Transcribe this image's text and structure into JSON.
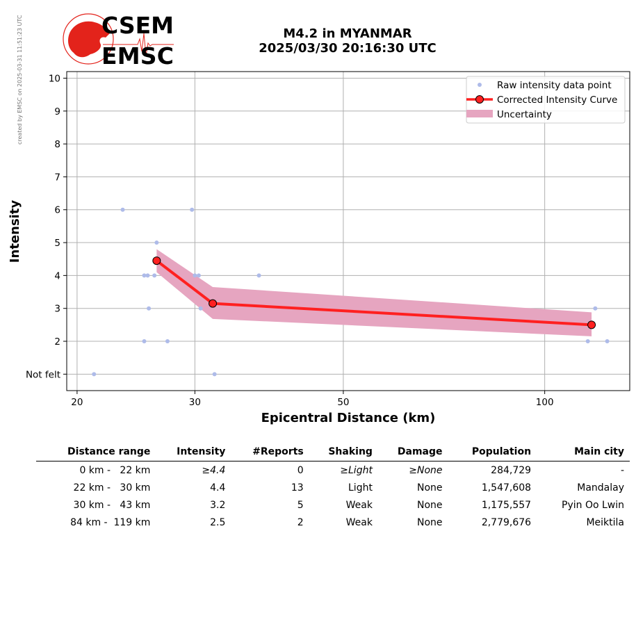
{
  "side_note": "created by EMSC on 2025-03-31 11:51:23 UTC",
  "logo": {
    "line1": "CSEM",
    "line2": "EMSC",
    "brand_color": "#e3231b"
  },
  "title": {
    "line1": "M4.2 in MYANMAR",
    "line2": "2025/03/30 20:16:30 UTC"
  },
  "chart_data": {
    "type": "scatter",
    "xlabel": "Epicentral Distance (km)",
    "ylabel": "Intensity",
    "xscale": "log",
    "xlim": [
      19.3,
      134
    ],
    "ylim": [
      0.5,
      10.2
    ],
    "xticks": [
      {
        "value": 20,
        "label": "20"
      },
      {
        "value": 30,
        "label": "30"
      },
      {
        "value": 50,
        "label": "50"
      },
      {
        "value": 100,
        "label": "100"
      }
    ],
    "yticks": [
      {
        "value": 1,
        "label": "Not felt"
      },
      {
        "value": 2,
        "label": "2"
      },
      {
        "value": 3,
        "label": "3"
      },
      {
        "value": 4,
        "label": "4"
      },
      {
        "value": 5,
        "label": "5"
      },
      {
        "value": 6,
        "label": "6"
      },
      {
        "value": 7,
        "label": "7"
      },
      {
        "value": 8,
        "label": "8"
      },
      {
        "value": 9,
        "label": "9"
      },
      {
        "value": 10,
        "label": "10"
      }
    ],
    "grid": true,
    "legend_position": "top-right",
    "legend": [
      {
        "key": "raw",
        "label": "Raw intensity data point"
      },
      {
        "key": "curve",
        "label": "Corrected Intensity Curve"
      },
      {
        "key": "band",
        "label": "Uncertainty"
      }
    ],
    "colors": {
      "raw": "#aebbe9",
      "curve": "#ff2020",
      "band": "#e6a5c0",
      "marker_edge": "#000000",
      "grid": "#b0b0b0"
    },
    "raw_points": [
      [
        21.2,
        1
      ],
      [
        23.4,
        6
      ],
      [
        25.2,
        4
      ],
      [
        25.5,
        4
      ],
      [
        25.6,
        3
      ],
      [
        25.2,
        2
      ],
      [
        26.1,
        4
      ],
      [
        26.3,
        5
      ],
      [
        27.3,
        2
      ],
      [
        29.7,
        6
      ],
      [
        30.0,
        4
      ],
      [
        30.4,
        4
      ],
      [
        30.6,
        3
      ],
      [
        32.1,
        1
      ],
      [
        37.4,
        4
      ],
      [
        116,
        2
      ],
      [
        119,
        3
      ],
      [
        124,
        2
      ]
    ],
    "series": [
      {
        "name": "Corrected Intensity Curve",
        "x": [
          26.3,
          31.9,
          117.5
        ],
        "y": [
          4.45,
          3.15,
          2.5
        ]
      }
    ],
    "uncertainty": {
      "x": [
        26.3,
        31.9,
        117.5
      ],
      "upper": [
        4.8,
        3.65,
        2.88
      ],
      "lower": [
        4.1,
        2.68,
        2.15
      ]
    }
  },
  "table": {
    "headers": [
      "Distance range",
      "Intensity",
      "#Reports",
      "Shaking",
      "Damage",
      "Population",
      "Main city"
    ],
    "rows": [
      [
        "0 km -   22 km",
        "≥4.4",
        "0",
        "≥Light",
        "≥None",
        "284,729",
        "-"
      ],
      [
        "22 km -   30 km",
        "4.4",
        "13",
        "Light",
        "None",
        "1,547,608",
        "Mandalay"
      ],
      [
        "30 km -   43 km",
        "3.2",
        "5",
        "Weak",
        "None",
        "1,175,557",
        "Pyin Oo Lwin"
      ],
      [
        "84 km -  119 km",
        "2.5",
        "2",
        "Weak",
        "None",
        "2,779,676",
        "Meiktila"
      ]
    ]
  }
}
